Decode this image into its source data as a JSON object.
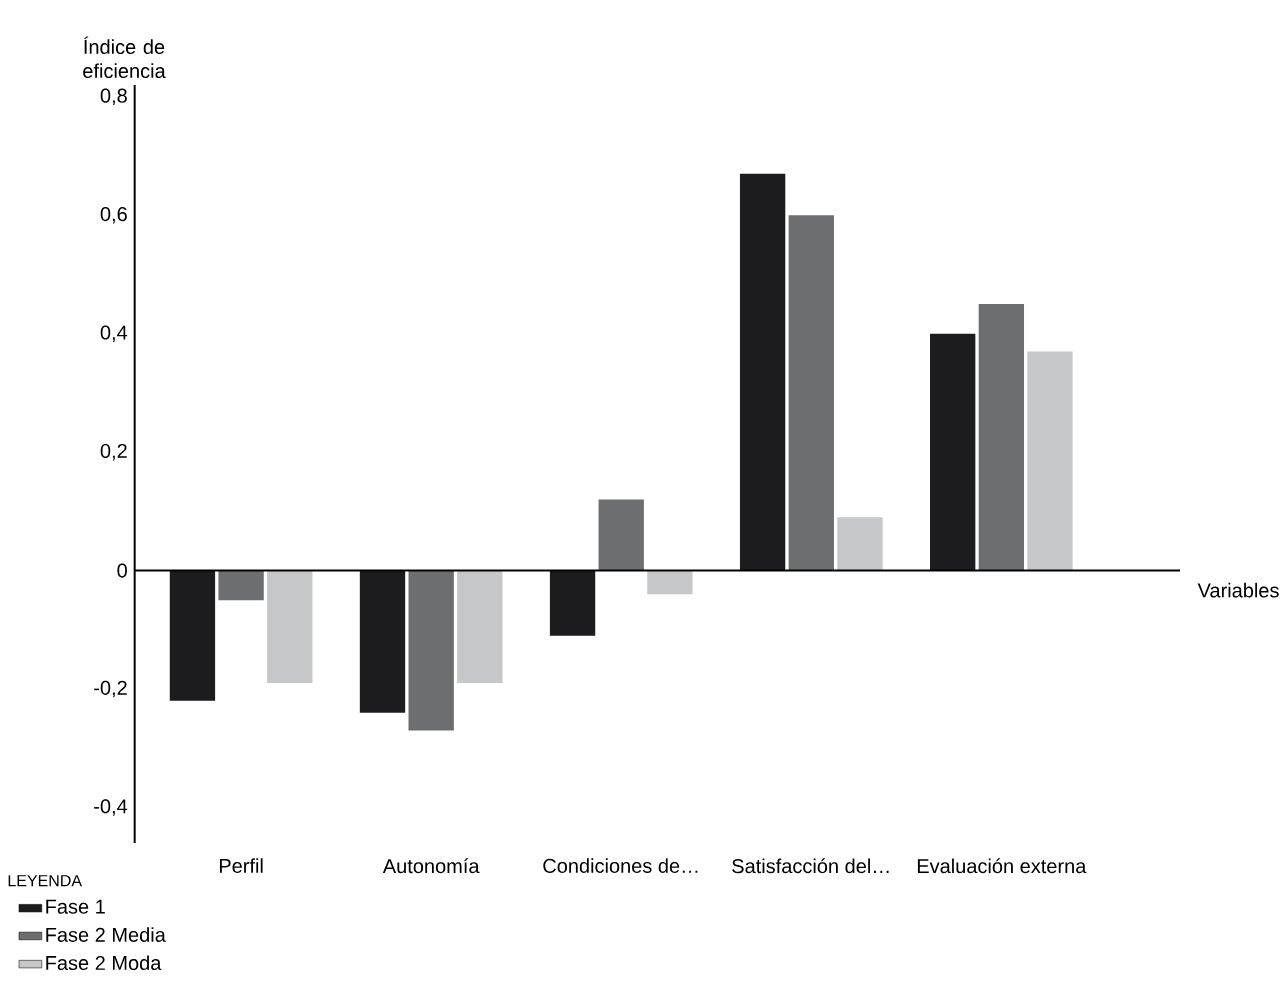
{
  "chart_data": {
    "type": "bar",
    "ylabel": "Índice de eficiencia",
    "xlabel": "Variables",
    "legend_title": "LEYENDA",
    "legend": "bottom left",
    "categories": [
      "Perfil",
      "Autonomía",
      "Condiciones de…",
      "Satisfacción del…",
      "Evaluación externa"
    ],
    "series": [
      {
        "name": "Fase 1",
        "color": "#1c1c1e",
        "values": [
          -0.22,
          -0.24,
          -0.11,
          0.67,
          0.4
        ]
      },
      {
        "name": "Fase 2 Media",
        "color": "#6d6e70",
        "values": [
          -0.05,
          -0.27,
          0.12,
          0.6,
          0.45
        ]
      },
      {
        "name": "Fase 2 Moda",
        "color": "#c6c7c8",
        "values": [
          -0.19,
          -0.19,
          -0.04,
          0.09,
          0.37
        ]
      }
    ],
    "ylim": [
      -0.46,
      0.82
    ],
    "yticks": [
      {
        "value": -0.4,
        "label": "-0,4"
      },
      {
        "value": -0.2,
        "label": "-0,2"
      },
      0,
      {
        "value": 0.2,
        "label": "0,2"
      },
      {
        "value": 0.4,
        "label": "0,4"
      },
      {
        "value": 0.6,
        "label": "0,6"
      },
      {
        "value": 0.8,
        "label": "0,8"
      }
    ]
  }
}
